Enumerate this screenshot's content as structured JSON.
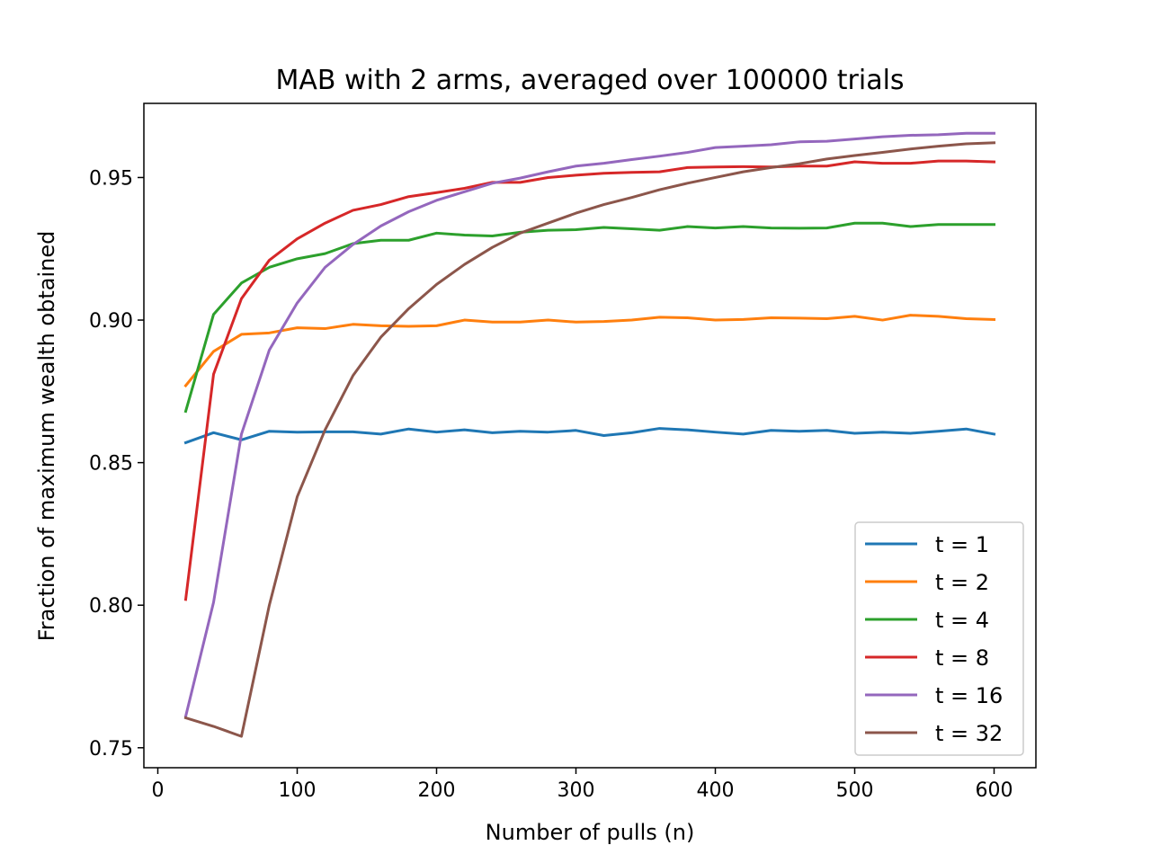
{
  "chart_data": {
    "type": "line",
    "title": "MAB with 2 arms, averaged over 100000 trials",
    "xlabel": "Number of pulls (n)",
    "ylabel": "Fraction of maximum wealth obtained",
    "xlim": [
      -10,
      630
    ],
    "ylim": [
      0.743,
      0.976
    ],
    "xticks": [
      0,
      100,
      200,
      300,
      400,
      500,
      600
    ],
    "yticks": [
      0.75,
      0.8,
      0.85,
      0.9,
      0.95
    ],
    "ytick_labels": [
      "0.75",
      "0.80",
      "0.85",
      "0.90",
      "0.95"
    ],
    "grid": false,
    "legend_position": "lower-right",
    "x": [
      20,
      40,
      60,
      80,
      100,
      120,
      140,
      160,
      180,
      200,
      220,
      240,
      260,
      280,
      300,
      320,
      340,
      360,
      380,
      400,
      420,
      440,
      460,
      480,
      500,
      520,
      540,
      560,
      580,
      600
    ],
    "series": [
      {
        "name": "t = 1",
        "color": "#1f77b4",
        "values": [
          0.857,
          0.8605,
          0.858,
          0.861,
          0.8607,
          0.8608,
          0.8608,
          0.86,
          0.8618,
          0.8607,
          0.8615,
          0.8605,
          0.861,
          0.8607,
          0.8613,
          0.8595,
          0.8605,
          0.862,
          0.8615,
          0.8607,
          0.86,
          0.8613,
          0.861,
          0.8613,
          0.8603,
          0.8607,
          0.8603,
          0.861,
          0.8618,
          0.86
        ]
      },
      {
        "name": "t = 2",
        "color": "#ff7f0e",
        "values": [
          0.877,
          0.889,
          0.895,
          0.8955,
          0.8973,
          0.897,
          0.8985,
          0.898,
          0.8978,
          0.898,
          0.9,
          0.8993,
          0.8993,
          0.9,
          0.8993,
          0.8995,
          0.9,
          0.901,
          0.9008,
          0.9,
          0.9002,
          0.9008,
          0.9007,
          0.9005,
          0.9013,
          0.9,
          0.9017,
          0.9013,
          0.9005,
          0.9002
        ]
      },
      {
        "name": "t = 4",
        "color": "#2ca02c",
        "values": [
          0.868,
          0.902,
          0.913,
          0.9185,
          0.9215,
          0.9233,
          0.9268,
          0.928,
          0.928,
          0.9305,
          0.9298,
          0.9295,
          0.9308,
          0.9315,
          0.9317,
          0.9325,
          0.932,
          0.9315,
          0.9328,
          0.9323,
          0.9328,
          0.9323,
          0.9322,
          0.9323,
          0.934,
          0.934,
          0.9328,
          0.9335,
          0.9335,
          0.9335
        ]
      },
      {
        "name": "t = 8",
        "color": "#d62728",
        "values": [
          0.802,
          0.881,
          0.9075,
          0.921,
          0.9285,
          0.934,
          0.9385,
          0.9405,
          0.9433,
          0.9447,
          0.9462,
          0.9483,
          0.9483,
          0.95,
          0.9508,
          0.9515,
          0.9518,
          0.952,
          0.9535,
          0.9537,
          0.9538,
          0.9537,
          0.954,
          0.954,
          0.9555,
          0.955,
          0.955,
          0.9558,
          0.9558,
          0.9555
        ]
      },
      {
        "name": "t = 16",
        "color": "#9467bd",
        "values": [
          0.761,
          0.801,
          0.86,
          0.8895,
          0.906,
          0.9185,
          0.9265,
          0.933,
          0.938,
          0.942,
          0.945,
          0.948,
          0.9498,
          0.952,
          0.954,
          0.955,
          0.9563,
          0.9575,
          0.9588,
          0.9605,
          0.961,
          0.9615,
          0.9625,
          0.9627,
          0.9635,
          0.9643,
          0.9648,
          0.965,
          0.9655,
          0.9655
        ]
      },
      {
        "name": "t = 32",
        "color": "#8c564b",
        "values": [
          0.7605,
          0.7575,
          0.754,
          0.8,
          0.838,
          0.8615,
          0.8805,
          0.894,
          0.904,
          0.9125,
          0.9195,
          0.9255,
          0.9305,
          0.934,
          0.9375,
          0.9405,
          0.943,
          0.9457,
          0.948,
          0.95,
          0.952,
          0.9535,
          0.9548,
          0.9565,
          0.9577,
          0.9588,
          0.96,
          0.961,
          0.9618,
          0.9622
        ]
      }
    ]
  }
}
